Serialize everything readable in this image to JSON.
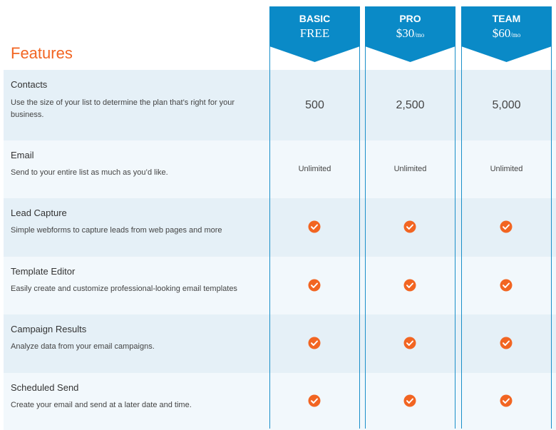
{
  "features_title": "Features",
  "accent_color": "#f26522",
  "header_color": "#0a8ac7",
  "plans": [
    {
      "name": "BASIC",
      "price": "FREE",
      "price_suffix": ""
    },
    {
      "name": "PRO",
      "price": "$30",
      "price_suffix": "/mo"
    },
    {
      "name": "TEAM",
      "price": "$60",
      "price_suffix": "/mo"
    }
  ],
  "features": [
    {
      "name": "Contacts",
      "description": "Use the size of your list to determine the plan that’s right for your business.",
      "values": [
        "500",
        "2,500",
        "5,000"
      ],
      "kind": "number"
    },
    {
      "name": "Email",
      "description": "Send to your entire list as much as you’d like.",
      "values": [
        "Unlimited",
        "Unlimited",
        "Unlimited"
      ],
      "kind": "text"
    },
    {
      "name": "Lead Capture",
      "description": "Simple webforms to capture leads from web pages and more",
      "values": [
        "check-icon",
        "check-icon",
        "check-icon"
      ],
      "kind": "check"
    },
    {
      "name": "Template Editor",
      "description": "Easily create and customize professional-looking email templates",
      "values": [
        "check-icon",
        "check-icon",
        "check-icon"
      ],
      "kind": "check"
    },
    {
      "name": "Campaign Results",
      "description": "Analyze data from your email campaigns.",
      "values": [
        "check-icon",
        "check-icon",
        "check-icon"
      ],
      "kind": "check"
    },
    {
      "name": "Scheduled Send",
      "description": "Create your email and send at a later date and time.",
      "values": [
        "check-icon",
        "check-icon",
        "check-icon"
      ],
      "kind": "check"
    }
  ]
}
